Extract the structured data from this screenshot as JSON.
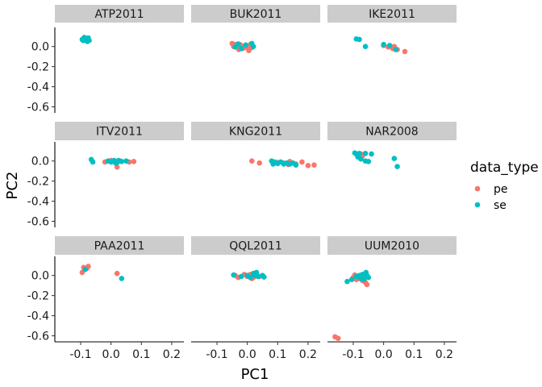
{
  "chart_data": {
    "type": "scatter",
    "facet_layout": "3x3",
    "xlabel": "PC1",
    "ylabel": "PC2",
    "xlim": [
      -0.185,
      0.24
    ],
    "ylim": [
      -0.66,
      0.19
    ],
    "x_ticks": [
      -0.1,
      0.0,
      0.1,
      0.2
    ],
    "x_tick_labels": [
      "-0.1",
      "0.0",
      "0.1",
      "0.2"
    ],
    "y_ticks": [
      -0.6,
      -0.4,
      -0.2,
      0.0
    ],
    "y_tick_labels": [
      "-0.6",
      "-0.4",
      "-0.2",
      "0.0"
    ],
    "grid": false,
    "legend": {
      "title": "data_type",
      "position": "right",
      "entries": [
        {
          "label": "pe",
          "color": "#F8766D"
        },
        {
          "label": "se",
          "color": "#00BFC4"
        }
      ]
    },
    "panels": [
      {
        "title": "ATP2011",
        "points": [
          {
            "x": -0.095,
            "y": 0.07,
            "type": "se"
          },
          {
            "x": -0.09,
            "y": 0.08,
            "type": "se"
          },
          {
            "x": -0.085,
            "y": 0.065,
            "type": "se"
          },
          {
            "x": -0.08,
            "y": 0.075,
            "type": "se"
          },
          {
            "x": -0.075,
            "y": 0.085,
            "type": "se"
          },
          {
            "x": -0.072,
            "y": 0.06,
            "type": "se"
          },
          {
            "x": -0.088,
            "y": 0.09,
            "type": "se"
          },
          {
            "x": -0.078,
            "y": 0.05,
            "type": "se"
          },
          {
            "x": -0.083,
            "y": 0.08,
            "type": "se"
          },
          {
            "x": -0.092,
            "y": 0.06,
            "type": "se"
          }
        ]
      },
      {
        "title": "BUK2011",
        "points": [
          {
            "x": -0.05,
            "y": 0.03,
            "type": "pe"
          },
          {
            "x": -0.045,
            "y": 0.0,
            "type": "pe"
          },
          {
            "x": -0.04,
            "y": 0.02,
            "type": "pe"
          },
          {
            "x": -0.035,
            "y": 0.01,
            "type": "pe"
          },
          {
            "x": -0.03,
            "y": -0.01,
            "type": "pe"
          },
          {
            "x": -0.025,
            "y": 0.02,
            "type": "pe"
          },
          {
            "x": -0.02,
            "y": 0.01,
            "type": "pe"
          },
          {
            "x": -0.015,
            "y": -0.02,
            "type": "pe"
          },
          {
            "x": -0.01,
            "y": 0.0,
            "type": "pe"
          },
          {
            "x": 0.0,
            "y": -0.015,
            "type": "pe"
          },
          {
            "x": 0.01,
            "y": 0.02,
            "type": "pe"
          },
          {
            "x": 0.015,
            "y": -0.01,
            "type": "pe"
          },
          {
            "x": 0.005,
            "y": -0.04,
            "type": "pe"
          },
          {
            "x": -0.028,
            "y": -0.03,
            "type": "pe"
          },
          {
            "x": -0.04,
            "y": -0.005,
            "type": "se"
          },
          {
            "x": -0.03,
            "y": 0.025,
            "type": "se"
          },
          {
            "x": -0.02,
            "y": -0.02,
            "type": "se"
          },
          {
            "x": -0.005,
            "y": 0.015,
            "type": "se"
          },
          {
            "x": 0.015,
            "y": 0.03,
            "type": "se"
          },
          {
            "x": 0.02,
            "y": 0.0,
            "type": "se"
          }
        ]
      },
      {
        "title": "IKE2011",
        "points": [
          {
            "x": 0.0,
            "y": 0.01,
            "type": "pe"
          },
          {
            "x": 0.015,
            "y": -0.005,
            "type": "pe"
          },
          {
            "x": 0.03,
            "y": -0.02,
            "type": "pe"
          },
          {
            "x": 0.045,
            "y": -0.03,
            "type": "pe"
          },
          {
            "x": 0.07,
            "y": -0.05,
            "type": "pe"
          },
          {
            "x": 0.035,
            "y": 0.0,
            "type": "pe"
          },
          {
            "x": -0.09,
            "y": 0.075,
            "type": "se"
          },
          {
            "x": -0.08,
            "y": 0.07,
            "type": "se"
          },
          {
            "x": -0.06,
            "y": 0.0,
            "type": "se"
          },
          {
            "x": 0.0,
            "y": 0.02,
            "type": "se"
          },
          {
            "x": 0.02,
            "y": 0.01,
            "type": "se"
          },
          {
            "x": 0.04,
            "y": -0.03,
            "type": "se"
          }
        ]
      },
      {
        "title": "ITV2011",
        "points": [
          {
            "x": 0.06,
            "y": -0.01,
            "type": "pe"
          },
          {
            "x": 0.075,
            "y": -0.005,
            "type": "pe"
          },
          {
            "x": 0.02,
            "y": -0.06,
            "type": "pe"
          },
          {
            "x": 0.03,
            "y": 0.0,
            "type": "pe"
          },
          {
            "x": -0.02,
            "y": -0.01,
            "type": "pe"
          },
          {
            "x": 0.0,
            "y": 0.005,
            "type": "pe"
          },
          {
            "x": -0.065,
            "y": 0.015,
            "type": "se"
          },
          {
            "x": -0.06,
            "y": -0.01,
            "type": "se"
          },
          {
            "x": -0.01,
            "y": 0.0,
            "type": "se"
          },
          {
            "x": 0.0,
            "y": -0.01,
            "type": "se"
          },
          {
            "x": 0.01,
            "y": 0.005,
            "type": "se"
          },
          {
            "x": 0.02,
            "y": -0.015,
            "type": "se"
          },
          {
            "x": 0.025,
            "y": 0.005,
            "type": "se"
          },
          {
            "x": 0.035,
            "y": -0.005,
            "type": "se"
          },
          {
            "x": 0.05,
            "y": 0.0,
            "type": "se"
          },
          {
            "x": 0.015,
            "y": -0.02,
            "type": "se"
          }
        ]
      },
      {
        "title": "KNG2011",
        "points": [
          {
            "x": 0.015,
            "y": 0.0,
            "type": "pe"
          },
          {
            "x": 0.04,
            "y": -0.02,
            "type": "pe"
          },
          {
            "x": 0.14,
            "y": -0.005,
            "type": "pe"
          },
          {
            "x": 0.16,
            "y": -0.03,
            "type": "pe"
          },
          {
            "x": 0.18,
            "y": -0.01,
            "type": "pe"
          },
          {
            "x": 0.2,
            "y": -0.045,
            "type": "pe"
          },
          {
            "x": 0.22,
            "y": -0.04,
            "type": "pe"
          },
          {
            "x": 0.12,
            "y": -0.02,
            "type": "pe"
          },
          {
            "x": 0.1,
            "y": -0.015,
            "type": "pe"
          },
          {
            "x": 0.135,
            "y": -0.035,
            "type": "pe"
          },
          {
            "x": 0.08,
            "y": 0.0,
            "type": "se"
          },
          {
            "x": 0.085,
            "y": -0.03,
            "type": "se"
          },
          {
            "x": 0.09,
            "y": -0.01,
            "type": "se"
          },
          {
            "x": 0.1,
            "y": -0.025,
            "type": "se"
          },
          {
            "x": 0.11,
            "y": -0.01,
            "type": "se"
          },
          {
            "x": 0.12,
            "y": -0.03,
            "type": "se"
          },
          {
            "x": 0.13,
            "y": -0.02,
            "type": "se"
          },
          {
            "x": 0.14,
            "y": -0.03,
            "type": "se"
          },
          {
            "x": 0.15,
            "y": -0.02,
            "type": "se"
          },
          {
            "x": 0.16,
            "y": -0.04,
            "type": "se"
          }
        ]
      },
      {
        "title": "NAR2008",
        "points": [
          {
            "x": -0.085,
            "y": 0.06,
            "type": "pe"
          },
          {
            "x": -0.075,
            "y": 0.07,
            "type": "pe"
          },
          {
            "x": -0.07,
            "y": 0.05,
            "type": "pe"
          },
          {
            "x": -0.08,
            "y": 0.04,
            "type": "pe"
          },
          {
            "x": -0.095,
            "y": 0.08,
            "type": "se"
          },
          {
            "x": -0.09,
            "y": 0.07,
            "type": "se"
          },
          {
            "x": -0.085,
            "y": 0.04,
            "type": "se"
          },
          {
            "x": -0.08,
            "y": 0.075,
            "type": "se"
          },
          {
            "x": -0.075,
            "y": 0.02,
            "type": "se"
          },
          {
            "x": -0.06,
            "y": 0.075,
            "type": "se"
          },
          {
            "x": -0.04,
            "y": 0.07,
            "type": "se"
          },
          {
            "x": -0.06,
            "y": 0.0,
            "type": "se"
          },
          {
            "x": -0.05,
            "y": -0.005,
            "type": "se"
          },
          {
            "x": 0.035,
            "y": 0.025,
            "type": "se"
          },
          {
            "x": 0.045,
            "y": -0.055,
            "type": "se"
          }
        ]
      },
      {
        "title": "PAA2011",
        "points": [
          {
            "x": -0.095,
            "y": 0.03,
            "type": "pe"
          },
          {
            "x": -0.09,
            "y": 0.08,
            "type": "pe"
          },
          {
            "x": -0.075,
            "y": 0.09,
            "type": "pe"
          },
          {
            "x": -0.08,
            "y": 0.07,
            "type": "pe"
          },
          {
            "x": 0.02,
            "y": 0.02,
            "type": "pe"
          },
          {
            "x": -0.085,
            "y": 0.06,
            "type": "se"
          },
          {
            "x": 0.035,
            "y": -0.03,
            "type": "se"
          }
        ]
      },
      {
        "title": "QQL2011",
        "points": [
          {
            "x": -0.04,
            "y": 0.0,
            "type": "pe"
          },
          {
            "x": -0.03,
            "y": -0.02,
            "type": "pe"
          },
          {
            "x": -0.01,
            "y": 0.01,
            "type": "pe"
          },
          {
            "x": 0.0,
            "y": -0.01,
            "type": "pe"
          },
          {
            "x": 0.01,
            "y": 0.01,
            "type": "pe"
          },
          {
            "x": 0.02,
            "y": -0.02,
            "type": "pe"
          },
          {
            "x": 0.03,
            "y": 0.005,
            "type": "pe"
          },
          {
            "x": 0.04,
            "y": -0.01,
            "type": "pe"
          },
          {
            "x": 0.015,
            "y": -0.03,
            "type": "pe"
          },
          {
            "x": -0.045,
            "y": 0.005,
            "type": "se"
          },
          {
            "x": -0.02,
            "y": -0.01,
            "type": "se"
          },
          {
            "x": 0.0,
            "y": 0.0,
            "type": "se"
          },
          {
            "x": 0.01,
            "y": -0.02,
            "type": "se"
          },
          {
            "x": 0.02,
            "y": 0.02,
            "type": "se"
          },
          {
            "x": 0.025,
            "y": 0.0,
            "type": "se"
          },
          {
            "x": 0.03,
            "y": 0.03,
            "type": "se"
          },
          {
            "x": 0.035,
            "y": -0.01,
            "type": "se"
          },
          {
            "x": 0.05,
            "y": 0.0,
            "type": "se"
          },
          {
            "x": 0.055,
            "y": -0.015,
            "type": "se"
          }
        ]
      },
      {
        "title": "UUM2010",
        "points": [
          {
            "x": -0.1,
            "y": -0.02,
            "type": "pe"
          },
          {
            "x": -0.095,
            "y": 0.005,
            "type": "pe"
          },
          {
            "x": -0.09,
            "y": -0.04,
            "type": "pe"
          },
          {
            "x": -0.085,
            "y": -0.01,
            "type": "pe"
          },
          {
            "x": -0.08,
            "y": -0.03,
            "type": "pe"
          },
          {
            "x": -0.075,
            "y": 0.0,
            "type": "pe"
          },
          {
            "x": -0.07,
            "y": -0.05,
            "type": "pe"
          },
          {
            "x": -0.065,
            "y": -0.02,
            "type": "pe"
          },
          {
            "x": -0.06,
            "y": -0.07,
            "type": "pe"
          },
          {
            "x": -0.055,
            "y": -0.09,
            "type": "pe"
          },
          {
            "x": -0.16,
            "y": -0.61,
            "type": "pe"
          },
          {
            "x": -0.15,
            "y": -0.625,
            "type": "pe"
          },
          {
            "x": -0.12,
            "y": -0.06,
            "type": "se"
          },
          {
            "x": -0.105,
            "y": -0.04,
            "type": "se"
          },
          {
            "x": -0.09,
            "y": -0.01,
            "type": "se"
          },
          {
            "x": -0.08,
            "y": 0.0,
            "type": "se"
          },
          {
            "x": -0.075,
            "y": -0.03,
            "type": "se"
          },
          {
            "x": -0.07,
            "y": 0.01,
            "type": "se"
          },
          {
            "x": -0.065,
            "y": -0.04,
            "type": "se"
          },
          {
            "x": -0.06,
            "y": 0.02,
            "type": "se"
          },
          {
            "x": -0.055,
            "y": 0.0,
            "type": "se"
          },
          {
            "x": -0.05,
            "y": -0.02,
            "type": "se"
          },
          {
            "x": -0.058,
            "y": 0.03,
            "type": "se"
          }
        ]
      }
    ]
  }
}
